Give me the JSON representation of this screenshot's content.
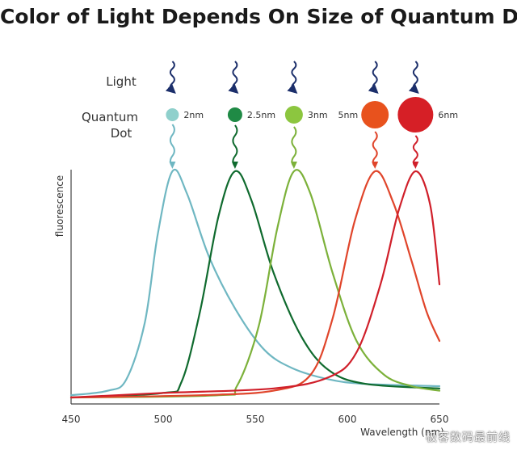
{
  "chart_data": {
    "type": "line",
    "title": "Color of Light Depends On Size of Quantum Dot",
    "xlabel": "Wavelength (nm)",
    "ylabel": "fluorescence",
    "xlim": [
      450,
      650
    ],
    "ylim": [
      0,
      1
    ],
    "x_ticks": [
      450,
      500,
      550,
      600,
      650
    ],
    "grid": false,
    "row_labels": {
      "light": "Light",
      "dot_line1": "Quantum",
      "dot_line2": "Dot"
    },
    "series": [
      {
        "size_label": "2nm",
        "peak_nm": 505,
        "color": "#6fb7c2",
        "dot_color": "#8fd0cc",
        "dot_radius": 8,
        "points": [
          [
            450,
            0.01
          ],
          [
            470,
            0.03
          ],
          [
            480,
            0.08
          ],
          [
            490,
            0.33
          ],
          [
            497,
            0.72
          ],
          [
            505,
            1.0
          ],
          [
            513,
            0.9
          ],
          [
            525,
            0.62
          ],
          [
            540,
            0.38
          ],
          [
            555,
            0.21
          ],
          [
            570,
            0.13
          ],
          [
            590,
            0.08
          ],
          [
            610,
            0.06
          ],
          [
            650,
            0.05
          ]
        ]
      },
      {
        "size_label": "2.5nm",
        "peak_nm": 539,
        "color": "#0f6a2e",
        "dot_color": "#1f8a45",
        "dot_radius": 9,
        "points": [
          [
            450,
            0.0
          ],
          [
            500,
            0.02
          ],
          [
            510,
            0.07
          ],
          [
            520,
            0.38
          ],
          [
            530,
            0.8
          ],
          [
            539,
            1.0
          ],
          [
            548,
            0.87
          ],
          [
            560,
            0.55
          ],
          [
            575,
            0.27
          ],
          [
            590,
            0.12
          ],
          [
            610,
            0.06
          ],
          [
            650,
            0.04
          ]
        ]
      },
      {
        "size_label": "3nm",
        "peak_nm": 571,
        "color": "#7cb13a",
        "dot_color": "#8cc63f",
        "dot_radius": 11,
        "points": [
          [
            450,
            0.0
          ],
          [
            530,
            0.01
          ],
          [
            540,
            0.05
          ],
          [
            552,
            0.32
          ],
          [
            562,
            0.75
          ],
          [
            571,
            1.0
          ],
          [
            580,
            0.9
          ],
          [
            592,
            0.55
          ],
          [
            605,
            0.25
          ],
          [
            620,
            0.1
          ],
          [
            635,
            0.05
          ],
          [
            650,
            0.03
          ]
        ]
      },
      {
        "size_label": "5nm",
        "peak_nm": 615,
        "color": "#e0452b",
        "dot_color": "#e8521d",
        "dot_radius": 17,
        "points": [
          [
            450,
            0.0
          ],
          [
            520,
            0.01
          ],
          [
            560,
            0.03
          ],
          [
            580,
            0.1
          ],
          [
            592,
            0.35
          ],
          [
            604,
            0.78
          ],
          [
            615,
            1.0
          ],
          [
            625,
            0.86
          ],
          [
            635,
            0.6
          ],
          [
            643,
            0.38
          ],
          [
            650,
            0.25
          ]
        ]
      },
      {
        "size_label": "6nm",
        "peak_nm": 637,
        "color": "#d01f2a",
        "dot_color": "#d61f26",
        "dot_radius": 22,
        "points": [
          [
            450,
            0.0
          ],
          [
            500,
            0.02
          ],
          [
            560,
            0.04
          ],
          [
            590,
            0.09
          ],
          [
            605,
            0.2
          ],
          [
            618,
            0.5
          ],
          [
            628,
            0.83
          ],
          [
            637,
            1.0
          ],
          [
            645,
            0.85
          ],
          [
            650,
            0.5
          ]
        ]
      }
    ]
  },
  "watermark": "极客数码最前线"
}
